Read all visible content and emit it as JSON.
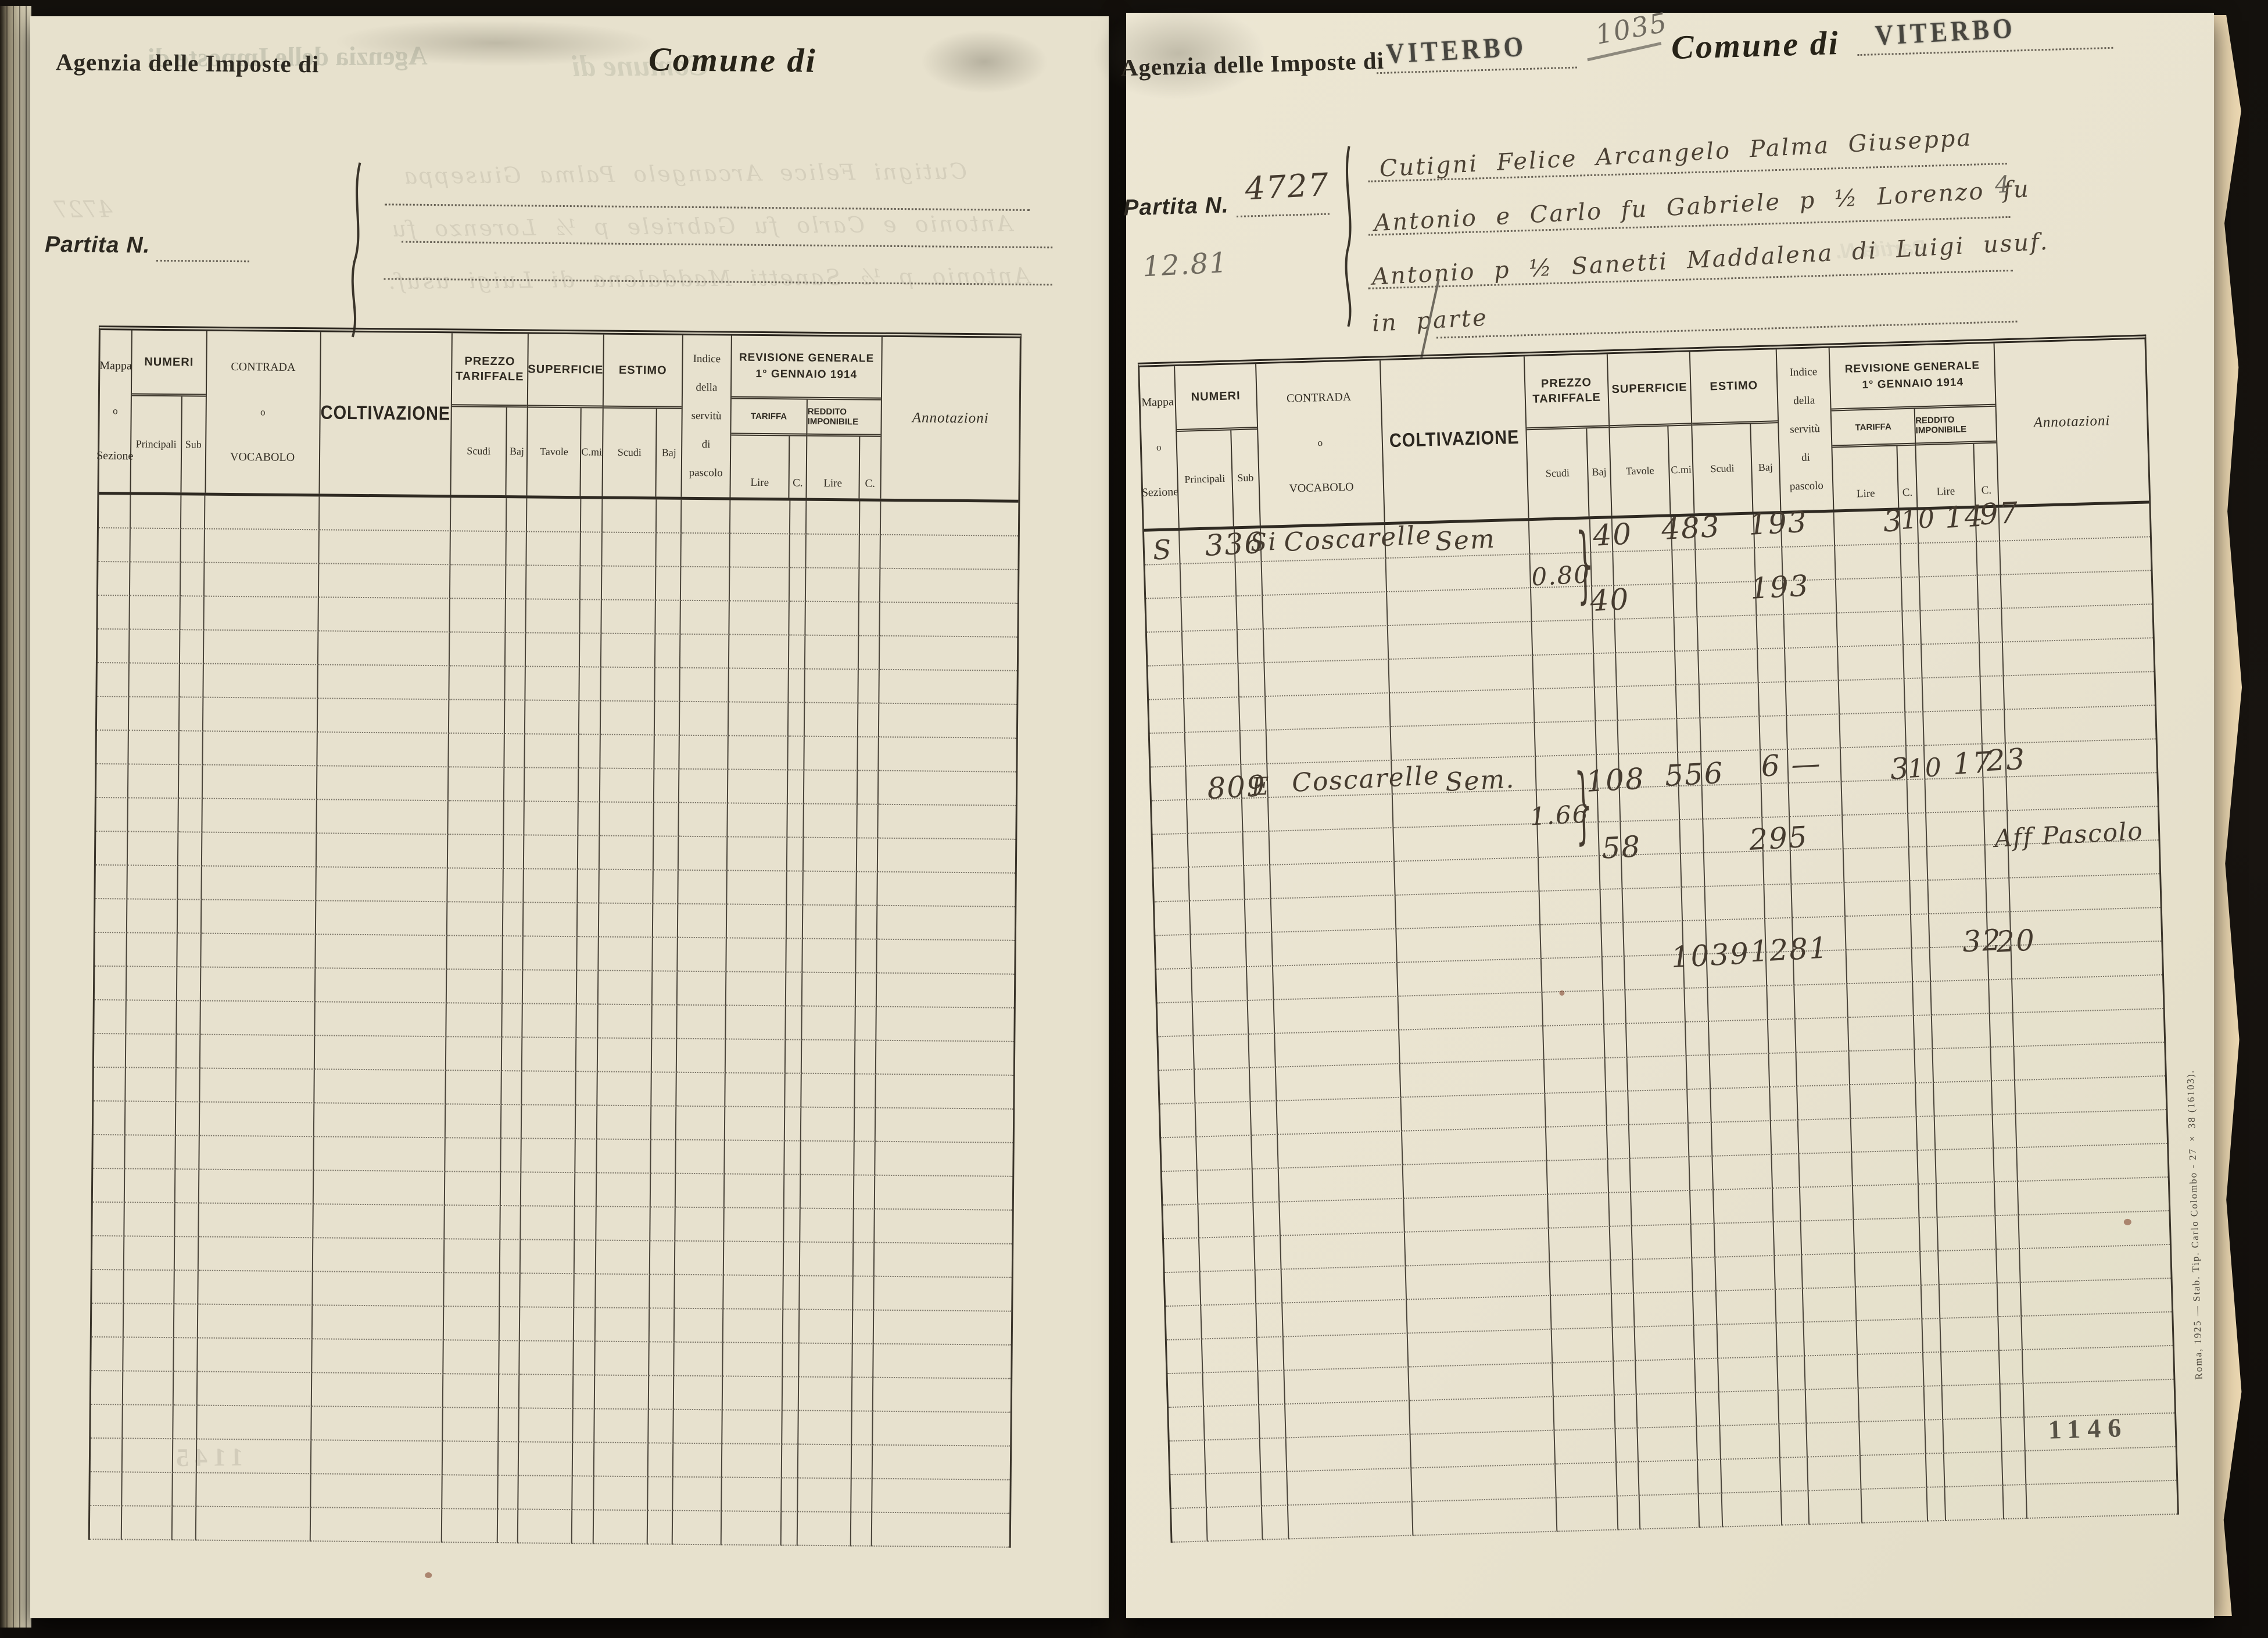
{
  "left_page": {
    "agency_label": "Agenzia delle Imposte di",
    "comune_label": "Comune di",
    "partita_label": "Partita N."
  },
  "right_page": {
    "agency_label": "Agenzia delle Imposte di",
    "agency_stamp": "VITERBO",
    "folio_pencil": "1035",
    "comune_label": "Comune di",
    "comune_stamp": "VITERBO",
    "partita_label": "Partita N.",
    "partita_number": "4727",
    "estimo_total_pencil": "12.81",
    "owners": {
      "line1": "Cutigni Felice Arcangelo Palma Giuseppa",
      "line2": "Antonio e Carlo fu Gabriele p ½  Lorenzo fu",
      "line3": "Antonio p ½  Sanetti Maddalena di Luigi usuf.",
      "line4": "in parte"
    },
    "margin_pencil": "4",
    "page_number": "1146",
    "imprint": "Roma, 1925 — Stab. Tip. Carlo Colombo - 27 × 38 (16103)."
  },
  "header": {
    "mappa1": "Mappa",
    "mappa2": "o",
    "mappa3": "Sezione",
    "numeri": "NUMERI",
    "principali": "Principali",
    "sub": "Sub",
    "contrada1": "CONTRADA",
    "contrada2": "o",
    "contrada3": "VOCABOLO",
    "coltivazione": "COLTIVAZIONE",
    "prezzo": "PREZZO TARIFFALE",
    "superficie": "SUPERFICIE",
    "estimo": "ESTIMO",
    "scudi": "Scudi",
    "baj": "Baj",
    "tavole": "Tavole",
    "cmi": "C.mi",
    "indice1": "Indice",
    "indice2": "della",
    "indice3": "servitù",
    "indice4": "di",
    "indice5": "pascolo",
    "revisione1": "REVISIONE GENERALE",
    "revisione2": "1° GENNAIO 1914",
    "tariffa": "TARIFFA",
    "reddito": "REDDITO IMPONIBILE",
    "lire": "Lire",
    "c": "C.",
    "annotazioni": "Annotazioni"
  },
  "entries": {
    "row1": {
      "sezione": "S",
      "numero": "336",
      "sub": "Si",
      "contrada": "Coscarelle",
      "coltivazione": "Sem",
      "prezzo": "0.80",
      "baj_a": "40",
      "baj_b": "40",
      "tavole": "483",
      "estimo_a": "193",
      "estimo_b": "193",
      "tariffa_lire": "3",
      "tariffa_c": "10",
      "reddito_lire": "14",
      "reddito_c": "97"
    },
    "row2": {
      "numero": "809",
      "sub": "E",
      "contrada": "Coscarelle",
      "coltivazione": "Sem.",
      "prezzo": "1.66",
      "baj_a": "108",
      "baj_b": "58",
      "tavole": "556",
      "estimo_a": "6 —",
      "estimo_b": "295",
      "tariffa_lire": "3",
      "tariffa_c": "10",
      "reddito_lire": "17",
      "reddito_c": "23",
      "annotazione": "Aff Pascolo"
    },
    "totals": {
      "tavole": "1039",
      "estimo": "1281",
      "reddito_lire": "32",
      "reddito_c": "20"
    }
  },
  "ghosts": {
    "folio_prev": "1145"
  }
}
